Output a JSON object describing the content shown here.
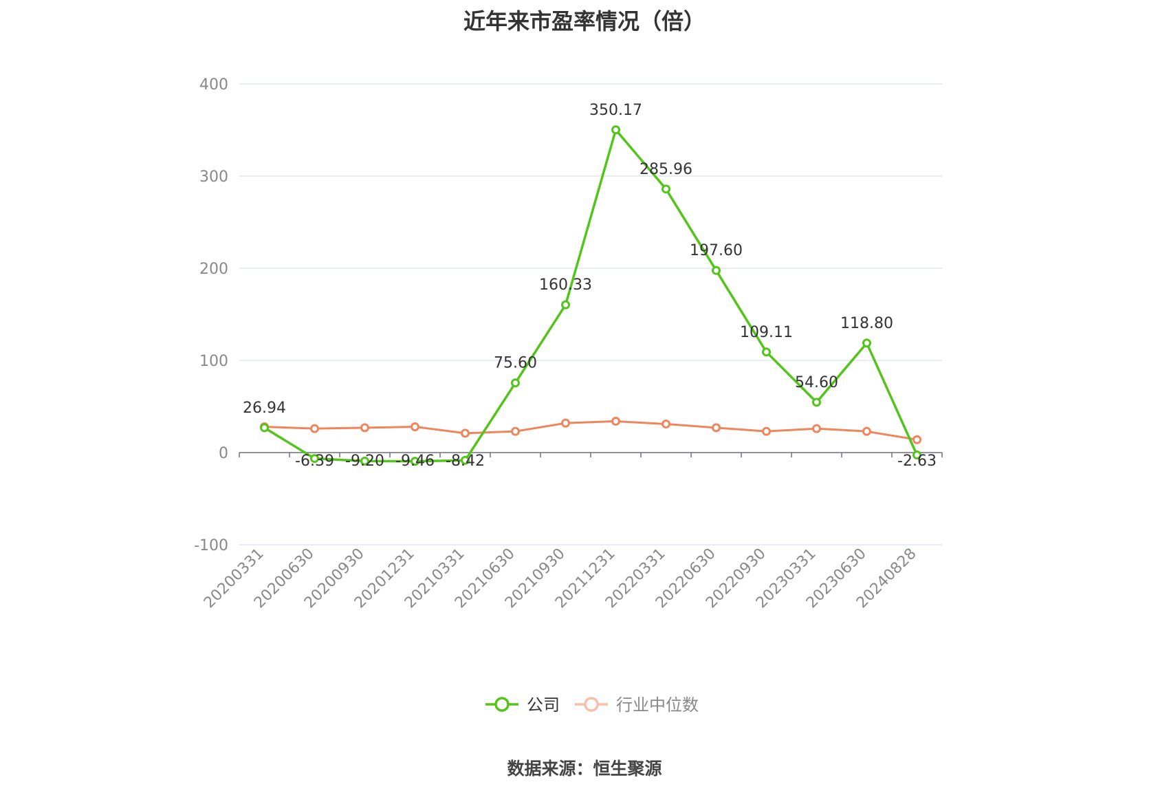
{
  "title": "近年来市盈率情况（倍）",
  "source": "数据来源：恒生聚源",
  "colors": {
    "company": "#52c41a",
    "industry": "#f0845a",
    "industry_legend": "#f8bfa8",
    "grid": "#e0e6f1",
    "axis": "#6e7079"
  },
  "chart_data": {
    "type": "line",
    "title": "近年来市盈率情况（倍）",
    "categories": [
      "20200331",
      "20200630",
      "20200930",
      "20201231",
      "20210331",
      "20210630",
      "20210930",
      "20211231",
      "20220331",
      "20220630",
      "20220930",
      "20230331",
      "20230630",
      "20240828"
    ],
    "y_ticks": [
      "400",
      "300",
      "200",
      "100",
      "0",
      "-100"
    ],
    "ylim": [
      -100,
      400
    ],
    "grid": true,
    "legend_position": "bottom-center",
    "series": [
      {
        "name": "公司",
        "values": [
          26.94,
          -6.39,
          -9.2,
          -9.46,
          -8.42,
          75.6,
          160.33,
          350.17,
          285.96,
          197.6,
          109.11,
          54.6,
          118.8,
          -2.63
        ],
        "labels": [
          "26.94",
          "-6.39",
          "-9.20",
          "-9.46",
          "-8.42",
          "75.60",
          "160.33",
          "350.17",
          "285.96",
          "197.60",
          "109.11",
          "54.60",
          "118.80",
          "-2.63"
        ]
      },
      {
        "name": "行业中位数",
        "values": [
          28,
          26,
          27,
          28,
          21,
          23,
          32,
          34,
          31,
          27,
          23,
          26,
          23,
          14
        ]
      }
    ]
  }
}
